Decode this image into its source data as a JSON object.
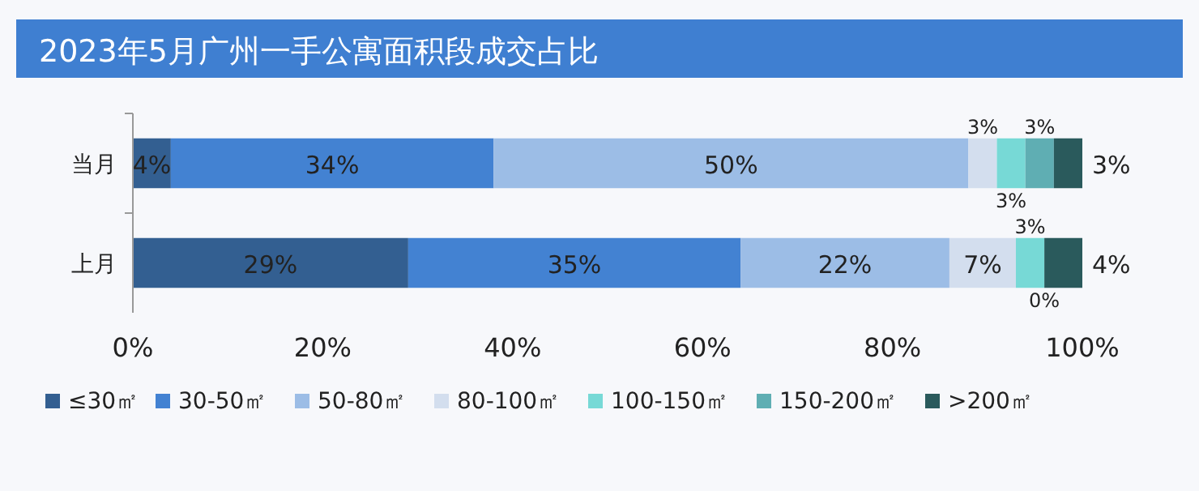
{
  "chart_data": {
    "type": "bar",
    "orientation": "horizontal",
    "stacked": true,
    "title": "2023年5月广州一手公寓面积段成交占比",
    "categories": [
      "当月",
      "上月"
    ],
    "series": [
      {
        "name": "≤30㎡",
        "color": "#335f91",
        "values": [
          4,
          29
        ],
        "value_labels": [
          "4%",
          "29%"
        ]
      },
      {
        "name": "30-50㎡",
        "color": "#4382d2",
        "values": [
          34,
          35
        ],
        "value_labels": [
          "34%",
          "35%"
        ]
      },
      {
        "name": "50-80㎡",
        "color": "#9cbde6",
        "values": [
          50,
          22
        ],
        "value_labels": [
          "50%",
          "22%"
        ]
      },
      {
        "name": "80-100㎡",
        "color": "#d3deee",
        "values": [
          3,
          7
        ],
        "value_labels": [
          "3%",
          "7%"
        ]
      },
      {
        "name": "100-150㎡",
        "color": "#77d9d6",
        "values": [
          3,
          3
        ],
        "value_labels": [
          "3%",
          "3%"
        ]
      },
      {
        "name": "150-200㎡",
        "color": "#5faeb3",
        "values": [
          3,
          0
        ],
        "value_labels": [
          "3%",
          "0%"
        ]
      },
      {
        "name": ">200㎡",
        "color": "#2a5a5c",
        "values": [
          3,
          4
        ],
        "value_labels": [
          "3%",
          "4%"
        ]
      }
    ],
    "xlim": [
      0,
      100
    ],
    "xticks": [
      {
        "value": 0,
        "label": "0%"
      },
      {
        "value": 20,
        "label": "20%"
      },
      {
        "value": 40,
        "label": "40%"
      },
      {
        "value": 60,
        "label": "60%"
      },
      {
        "value": 80,
        "label": "80%"
      },
      {
        "value": 100,
        "label": "100%"
      }
    ],
    "grid": false,
    "legend": "bottom"
  }
}
